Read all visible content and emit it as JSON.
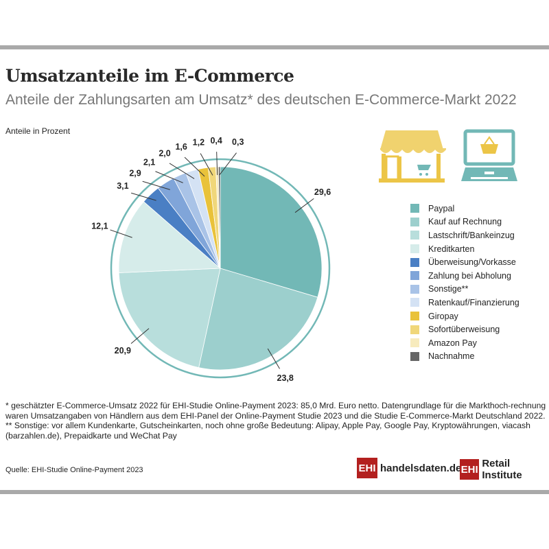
{
  "header": {
    "title": "Umsatzanteile im E-Commerce",
    "subtitle": "Anteile der Zahlungsarten am Umsatz* des deutschen E-Commerce-Markt 2022"
  },
  "chart_data": {
    "type": "pie",
    "title": "Umsatzanteile im E-Commerce",
    "subtitle": "Anteile der Zahlungsarten am Umsatz* des deutschen E-Commerce-Markt 2022",
    "unit_label": "Anteile in Prozent",
    "legend_placement": "right",
    "start": "top, clockwise",
    "slices": [
      {
        "name": "Paypal",
        "value": 29.6,
        "label": "29,6",
        "color": "#72b8b6"
      },
      {
        "name": "Kauf auf Rechnung",
        "value": 23.8,
        "label": "23,8",
        "color": "#9ccfcd"
      },
      {
        "name": "Lastschrift/Bankeinzug",
        "value": 20.9,
        "label": "20,9",
        "color": "#b8dedc"
      },
      {
        "name": "Kreditkarten",
        "value": 12.1,
        "label": "12,1",
        "color": "#d6ecea"
      },
      {
        "name": "Überweisung/Vorkasse",
        "value": 3.1,
        "label": "3,1",
        "color": "#4a7fc4"
      },
      {
        "name": "Zahlung bei Abholung",
        "value": 2.9,
        "label": "2,9",
        "color": "#80a5d9"
      },
      {
        "name": "Sonstige**",
        "value": 2.1,
        "label": "2,1",
        "color": "#a9c3e7"
      },
      {
        "name": "Ratenkauf/Finanzierung",
        "value": 2.0,
        "label": "2,0",
        "color": "#d4e2f4"
      },
      {
        "name": "Giropay",
        "value": 1.6,
        "label": "1,6",
        "color": "#e9c23a"
      },
      {
        "name": "Sofortüberweisung",
        "value": 1.2,
        "label": "1,2",
        "color": "#f0d77a"
      },
      {
        "name": "Amazon Pay",
        "value": 0.4,
        "label": "0,4",
        "color": "#f7ebbd"
      },
      {
        "name": "Nachnahme",
        "value": 0.3,
        "label": "0,3",
        "color": "#666666"
      }
    ]
  },
  "icons": [
    "store-icon",
    "laptop-shopping-basket-icon"
  ],
  "notes": {
    "footnote1": "* geschätzter E-Commerce-Umsatz 2022 für EHI-Studie Online-Payment 2023: 85,0 Mrd. Euro netto. Datengrundlage für die Markthoch-rechnung waren Umsatzangaben von Händlern aus dem EHI-Panel der Online-Payment Studie 2023 und die Studie E-Commerce-Markt Deutschland 2022.",
    "footnote2": "** Sonstige: vor allem Kundenkarte, Gutscheinkarten, noch ohne große Bedeutung: Alipay, Apple Pay, Google Pay, Kryptowährungen, viacash (barzahlen.de), Prepaidkarte und WeChat Pay",
    "source": "Quelle: EHI-Studie Online-Payment 2023"
  },
  "logos": {
    "badge": "EHI",
    "logo1": "handelsdaten.de",
    "logo2": "Retail Institute"
  },
  "colors": {
    "ring": "#72b8b6",
    "logo_red": "#b3201f",
    "rule": "#a9a9a9"
  }
}
